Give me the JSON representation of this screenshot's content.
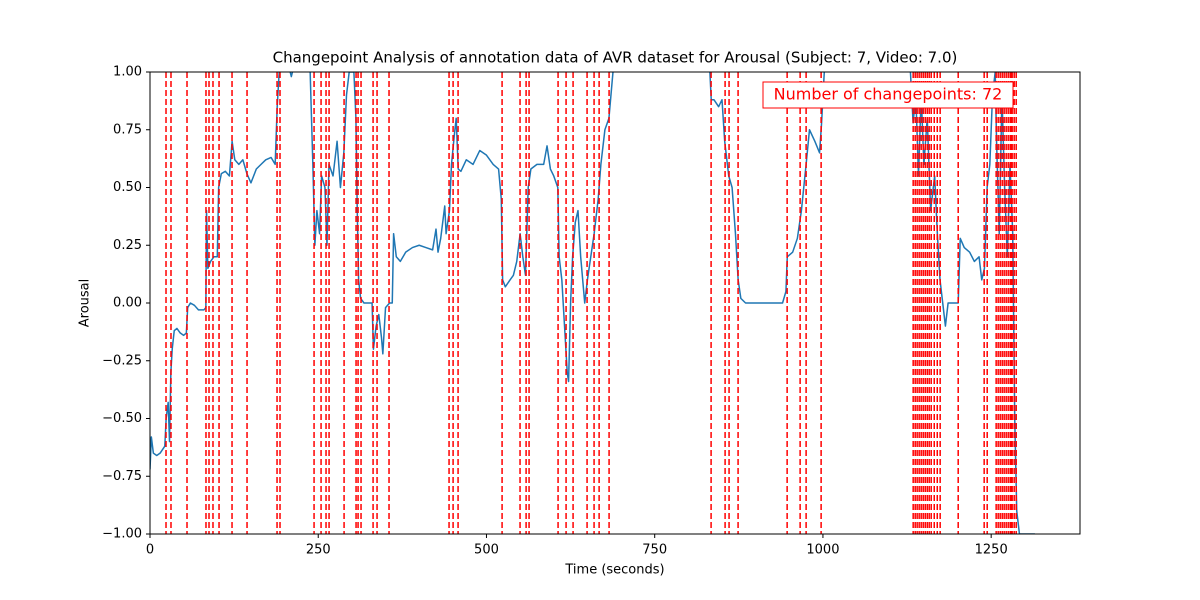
{
  "chart_data": {
    "type": "line",
    "title": "Changepoint Analysis of annotation data of AVR dataset for Arousal (Subject: 7, Video: 7.0)",
    "xlabel": "Time (seconds)",
    "ylabel": "Arousal",
    "annotation": "Number of changepoints: 72",
    "color": "#1f77b4",
    "changepoint_color": "#ff0000",
    "xlim": [
      0,
      1382
    ],
    "ylim": [
      -1,
      1
    ],
    "xticks": [
      0,
      250,
      500,
      750,
      1000,
      1250
    ],
    "yticks": [
      {
        "value": -1,
        "label": "−1.00"
      },
      {
        "value": -0.75,
        "label": "−0.75"
      },
      {
        "value": -0.5,
        "label": "−0.50"
      },
      {
        "value": -0.25,
        "label": "−0.25"
      },
      {
        "value": 0,
        "label": "0.00"
      },
      {
        "value": 0.25,
        "label": "0.25"
      },
      {
        "value": 0.5,
        "label": "0.50"
      },
      {
        "value": 0.75,
        "label": "0.75"
      },
      {
        "value": 1,
        "label": "1.00"
      }
    ],
    "x": [
      0,
      2,
      5,
      10,
      15,
      22,
      24,
      27,
      29,
      31,
      33,
      36,
      40,
      45,
      50,
      54,
      56,
      60,
      66,
      72,
      80,
      83,
      84,
      86,
      90,
      95,
      100,
      102,
      106,
      112,
      118,
      122,
      126,
      132,
      138,
      144,
      150,
      158,
      165,
      172,
      180,
      186,
      189,
      192,
      195,
      200,
      210,
      220,
      230,
      238,
      242,
      245,
      248,
      252,
      255,
      260,
      263,
      266,
      272,
      278,
      283,
      288,
      292,
      296,
      303,
      306,
      308,
      310,
      313,
      318,
      325,
      330,
      332,
      336,
      340,
      344,
      346,
      350,
      356,
      360,
      362,
      366,
      372,
      380,
      390,
      400,
      410,
      420,
      425,
      428,
      432,
      438,
      440,
      445,
      448,
      452,
      455,
      458,
      462,
      470,
      480,
      490,
      500,
      510,
      518,
      522,
      524,
      528,
      535,
      540,
      545,
      550,
      554,
      558,
      562,
      566,
      575,
      585,
      590,
      595,
      600,
      606,
      608,
      612,
      616,
      620,
      622,
      625,
      628,
      632,
      636,
      640,
      646,
      650,
      655,
      660,
      666,
      670,
      676,
      682,
      688,
      700,
      820,
      832,
      834,
      838,
      845,
      850,
      854,
      860,
      865,
      870,
      874,
      878,
      885,
      900,
      920,
      940,
      945,
      947,
      955,
      962,
      968,
      975,
      980,
      988,
      995,
      998,
      1002,
      1010,
      1125,
      1130,
      1134,
      1138,
      1142,
      1146,
      1150,
      1155,
      1160,
      1166,
      1170,
      1174,
      1178,
      1182,
      1186,
      1195,
      1201,
      1204,
      1210,
      1218,
      1225,
      1232,
      1236,
      1240,
      1244,
      1248,
      1252,
      1256,
      1258,
      1262,
      1266,
      1270,
      1274,
      1278,
      1282,
      1285,
      1288,
      1290,
      1292,
      1300,
      1315
    ],
    "values": [
      -0.72,
      -0.58,
      -0.65,
      -0.66,
      -0.65,
      -0.62,
      -0.5,
      -0.43,
      -0.6,
      -0.3,
      -0.2,
      -0.12,
      -0.11,
      -0.13,
      -0.14,
      -0.13,
      -0.02,
      0.0,
      -0.01,
      -0.03,
      -0.03,
      -0.02,
      0.4,
      0.15,
      0.18,
      0.2,
      0.2,
      0.5,
      0.56,
      0.57,
      0.55,
      0.7,
      0.62,
      0.6,
      0.62,
      0.56,
      0.52,
      0.58,
      0.6,
      0.62,
      0.63,
      0.6,
      0.85,
      1.0,
      1.05,
      1.1,
      0.98,
      1.1,
      1.1,
      1.0,
      0.6,
      0.25,
      0.4,
      0.3,
      0.55,
      0.5,
      0.25,
      0.6,
      0.55,
      0.7,
      0.5,
      0.65,
      0.9,
      1.0,
      1.0,
      0.8,
      0.4,
      0.1,
      0.02,
      0.0,
      0.0,
      0.0,
      -0.2,
      -0.1,
      -0.05,
      -0.15,
      -0.22,
      -0.02,
      0.0,
      0.0,
      0.3,
      0.2,
      0.18,
      0.22,
      0.24,
      0.25,
      0.24,
      0.23,
      0.32,
      0.22,
      0.28,
      0.42,
      0.3,
      0.4,
      0.6,
      0.72,
      0.8,
      0.58,
      0.57,
      0.62,
      0.6,
      0.66,
      0.64,
      0.6,
      0.58,
      0.45,
      0.1,
      0.07,
      0.1,
      0.12,
      0.18,
      0.3,
      0.2,
      0.12,
      0.5,
      0.58,
      0.6,
      0.6,
      0.68,
      0.58,
      0.55,
      0.5,
      0.2,
      0.1,
      -0.1,
      -0.3,
      -0.34,
      0.0,
      0.2,
      0.35,
      0.4,
      0.2,
      0.0,
      0.1,
      0.2,
      0.3,
      0.45,
      0.6,
      0.75,
      0.8,
      1.0,
      1.2,
      1.2,
      1.0,
      0.88,
      0.88,
      0.85,
      0.88,
      0.7,
      0.55,
      0.5,
      0.3,
      0.1,
      0.02,
      0.0,
      0.0,
      0.0,
      0.0,
      0.05,
      0.2,
      0.22,
      0.28,
      0.4,
      0.6,
      0.75,
      0.7,
      0.65,
      0.78,
      1.0,
      1.2,
      1.2,
      1.0,
      0.78,
      0.9,
      0.55,
      0.9,
      0.6,
      0.8,
      0.4,
      0.55,
      0.3,
      0.1,
      0.0,
      -0.1,
      0.0,
      0.0,
      0.0,
      0.28,
      0.24,
      0.22,
      0.18,
      0.2,
      0.1,
      0.15,
      0.5,
      0.6,
      0.9,
      1.0,
      0.7,
      0.3,
      0.9,
      0.5,
      0.2,
      0.6,
      0.3,
      -0.5,
      -0.9,
      -0.95,
      -1.0,
      -1.0,
      -1.0
    ],
    "changepoints": [
      23.8,
      31.2,
      55,
      83.2,
      87.7,
      93.6,
      102.6,
      121.9,
      144.2,
      188.8,
      193.2,
      243.8,
      254.2,
      261.6,
      266.1,
      288.4,
      306.2,
      309.2,
      313.6,
      331.5,
      337.4,
      355.2,
      444.4,
      450.4,
      457.8,
      523.2,
      549.9,
      558.9,
      563.3,
      606.4,
      618.3,
      628.7,
      649.5,
      659.9,
      667.4,
      682.2,
      833.8,
      854.6,
      860.5,
      873.9,
      946.8,
      966.1,
      975,
      997.3,
      1134.1,
      1137.1,
      1140,
      1143,
      1146,
      1149,
      1152,
      1155,
      1157.9,
      1160.9,
      1165.4,
      1169.9,
      1174.2,
      1201,
      1239.6,
      1244.1,
      1257.4,
      1260.4,
      1263.4,
      1266.4,
      1269.3,
      1272.3,
      1275.3,
      1278.2,
      1279.7,
      1281.2,
      1284.2,
      1287.2
    ]
  }
}
